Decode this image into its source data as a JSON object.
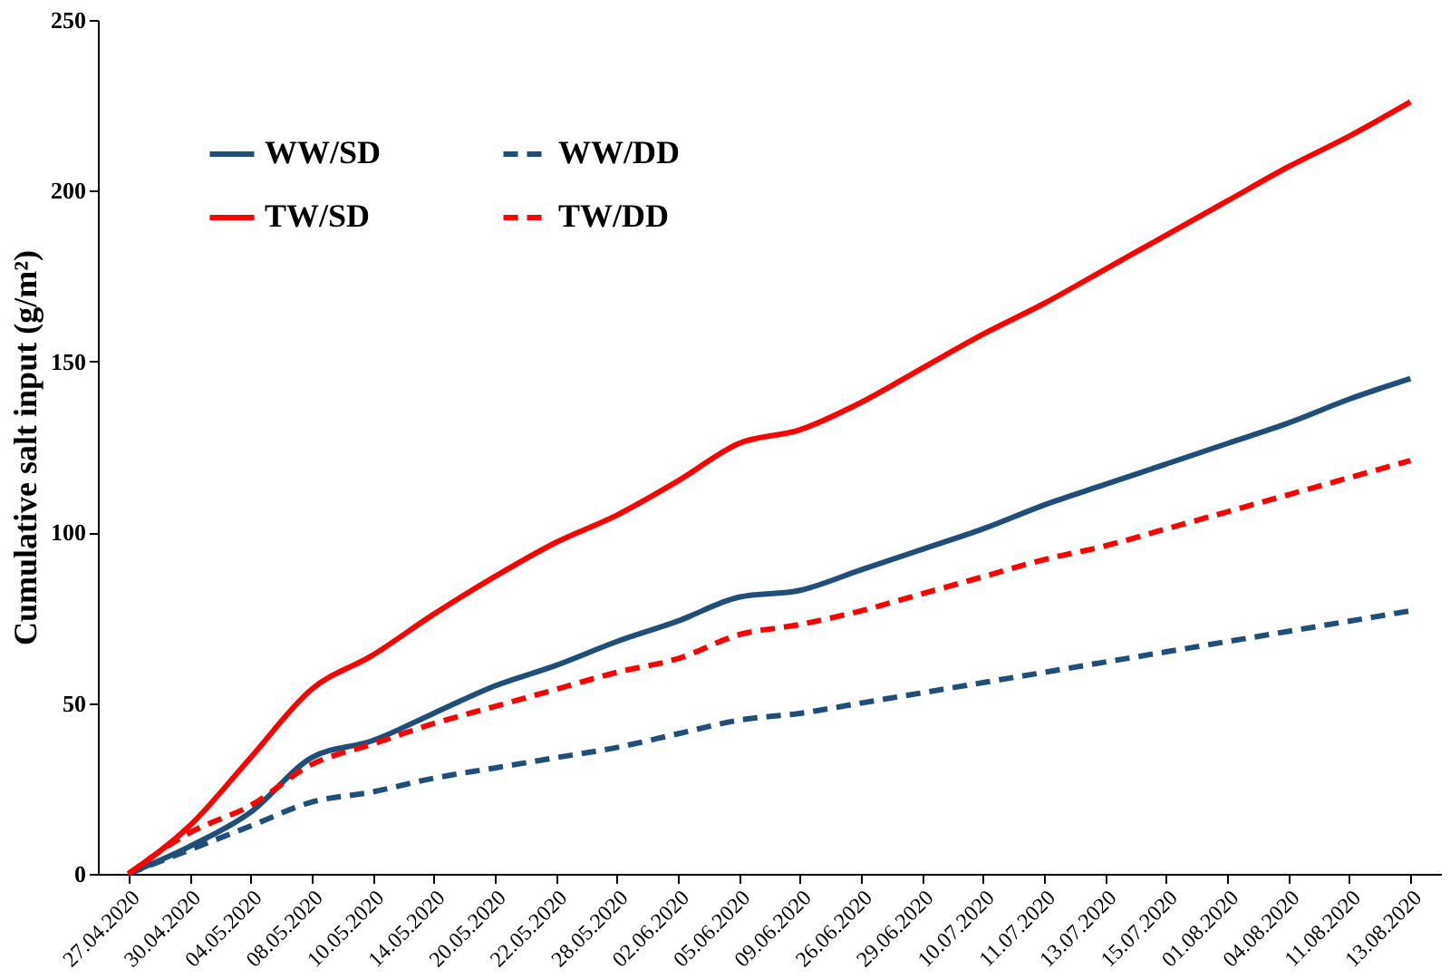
{
  "chart_data": {
    "type": "line",
    "ylabel": "Cumulative salt input (g/m²)",
    "categories": [
      "27.04.2020",
      "30.04.2020",
      "04.05.2020",
      "08.05.2020",
      "10.05.2020",
      "14.05.2020",
      "20.05.2020",
      "22.05.2020",
      "28.05.2020",
      "02.06.2020",
      "05.06.2020",
      "09.06.2020",
      "26.06.2020",
      "29.06.2020",
      "10.07.2020",
      "11.07.2020",
      "13.07.2020",
      "15.07.2020",
      "01.08.2020",
      "04.08.2020",
      "11.08.2020",
      "13.08.2020"
    ],
    "series": [
      {
        "name": "WW/SD",
        "color": "#1f4e79",
        "line_style": "solid",
        "values": [
          0,
          8,
          18,
          34,
          39,
          47,
          55,
          61,
          68,
          74,
          81,
          83,
          89,
          95,
          101,
          108,
          114,
          120,
          126,
          132,
          139,
          145
        ]
      },
      {
        "name": "TW/SD",
        "color": "#ff0000",
        "line_style": "solid",
        "values": [
          0,
          14,
          34,
          54,
          64,
          76,
          87,
          97,
          105,
          115,
          126,
          130,
          138,
          148,
          158,
          167,
          177,
          187,
          197,
          207,
          216,
          226
        ]
      },
      {
        "name": "WW/DD",
        "color": "#1f4e79",
        "line_style": "dashed",
        "values": [
          0,
          7,
          14,
          21,
          24,
          28,
          31,
          34,
          37,
          41,
          45,
          47,
          50,
          53,
          56,
          59,
          62,
          65,
          68,
          71,
          74,
          77
        ]
      },
      {
        "name": "TW/DD",
        "color": "#ff0000",
        "line_style": "dashed",
        "values": [
          0,
          12,
          20,
          32,
          38,
          44,
          49,
          54,
          59,
          63,
          70,
          73,
          77,
          82,
          87,
          92,
          96,
          101,
          106,
          111,
          116,
          121
        ]
      }
    ],
    "ylim": [
      0,
      250
    ],
    "yticks": [
      0,
      50,
      100,
      150,
      200,
      250
    ],
    "grid": false,
    "legend": "top left"
  }
}
